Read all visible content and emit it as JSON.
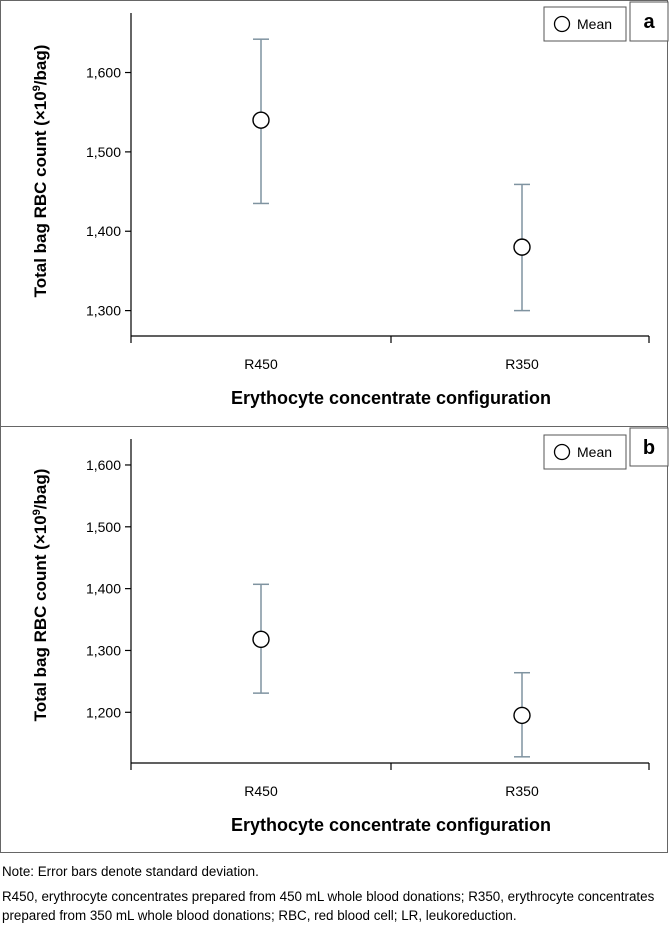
{
  "chart_data": [
    {
      "type": "scatter",
      "panel_label": "a",
      "categories": [
        "R450",
        "R350"
      ],
      "series": [
        {
          "name": "Mean",
          "values": [
            1540,
            1380
          ],
          "error_low": [
            1435,
            1300
          ],
          "error_high": [
            1642,
            1459
          ]
        }
      ],
      "ylabel_main": "Total bag RBC count (×10",
      "ylabel_sup": "9",
      "ylabel_end": "/bag)",
      "xlabel": "Erythocyte concentrate configuration",
      "yticks": [
        1300,
        1400,
        1500,
        1600
      ],
      "ytick_labels": [
        "1,300",
        "1,400",
        "1,500",
        "1,600"
      ],
      "ylim": [
        1268,
        1675
      ],
      "legend": "Mean",
      "legend_position": "top-right",
      "colors": {
        "error_bar": "#7f93a0",
        "marker_fill": "#ffffff",
        "marker_stroke": "#000000"
      }
    },
    {
      "type": "scatter",
      "panel_label": "b",
      "categories": [
        "R450",
        "R350"
      ],
      "series": [
        {
          "name": "Mean",
          "values": [
            1318,
            1195
          ],
          "error_low": [
            1231,
            1128
          ],
          "error_high": [
            1407,
            1264
          ]
        }
      ],
      "ylabel_main": "Total bag RBC count (×10",
      "ylabel_sup": "9",
      "ylabel_end": "/bag)",
      "xlabel": "Erythocyte concentrate configuration",
      "yticks": [
        1200,
        1300,
        1400,
        1500,
        1600
      ],
      "ytick_labels": [
        "1,200",
        "1,300",
        "1,400",
        "1,500",
        "1,600"
      ],
      "ylim": [
        1118,
        1642
      ],
      "legend": "Mean",
      "legend_position": "top-right",
      "colors": {
        "error_bar": "#7f93a0",
        "marker_fill": "#ffffff",
        "marker_stroke": "#000000"
      }
    }
  ],
  "notes": {
    "note": "Note: Error bars denote standard deviation.",
    "abbreviations": "R450, erythrocyte concentrates prepared from 450 mL whole blood donations; R350, erythrocyte concentrates prepared from 350 mL whole blood donations; RBC, red blood cell; LR, leukoreduction."
  }
}
